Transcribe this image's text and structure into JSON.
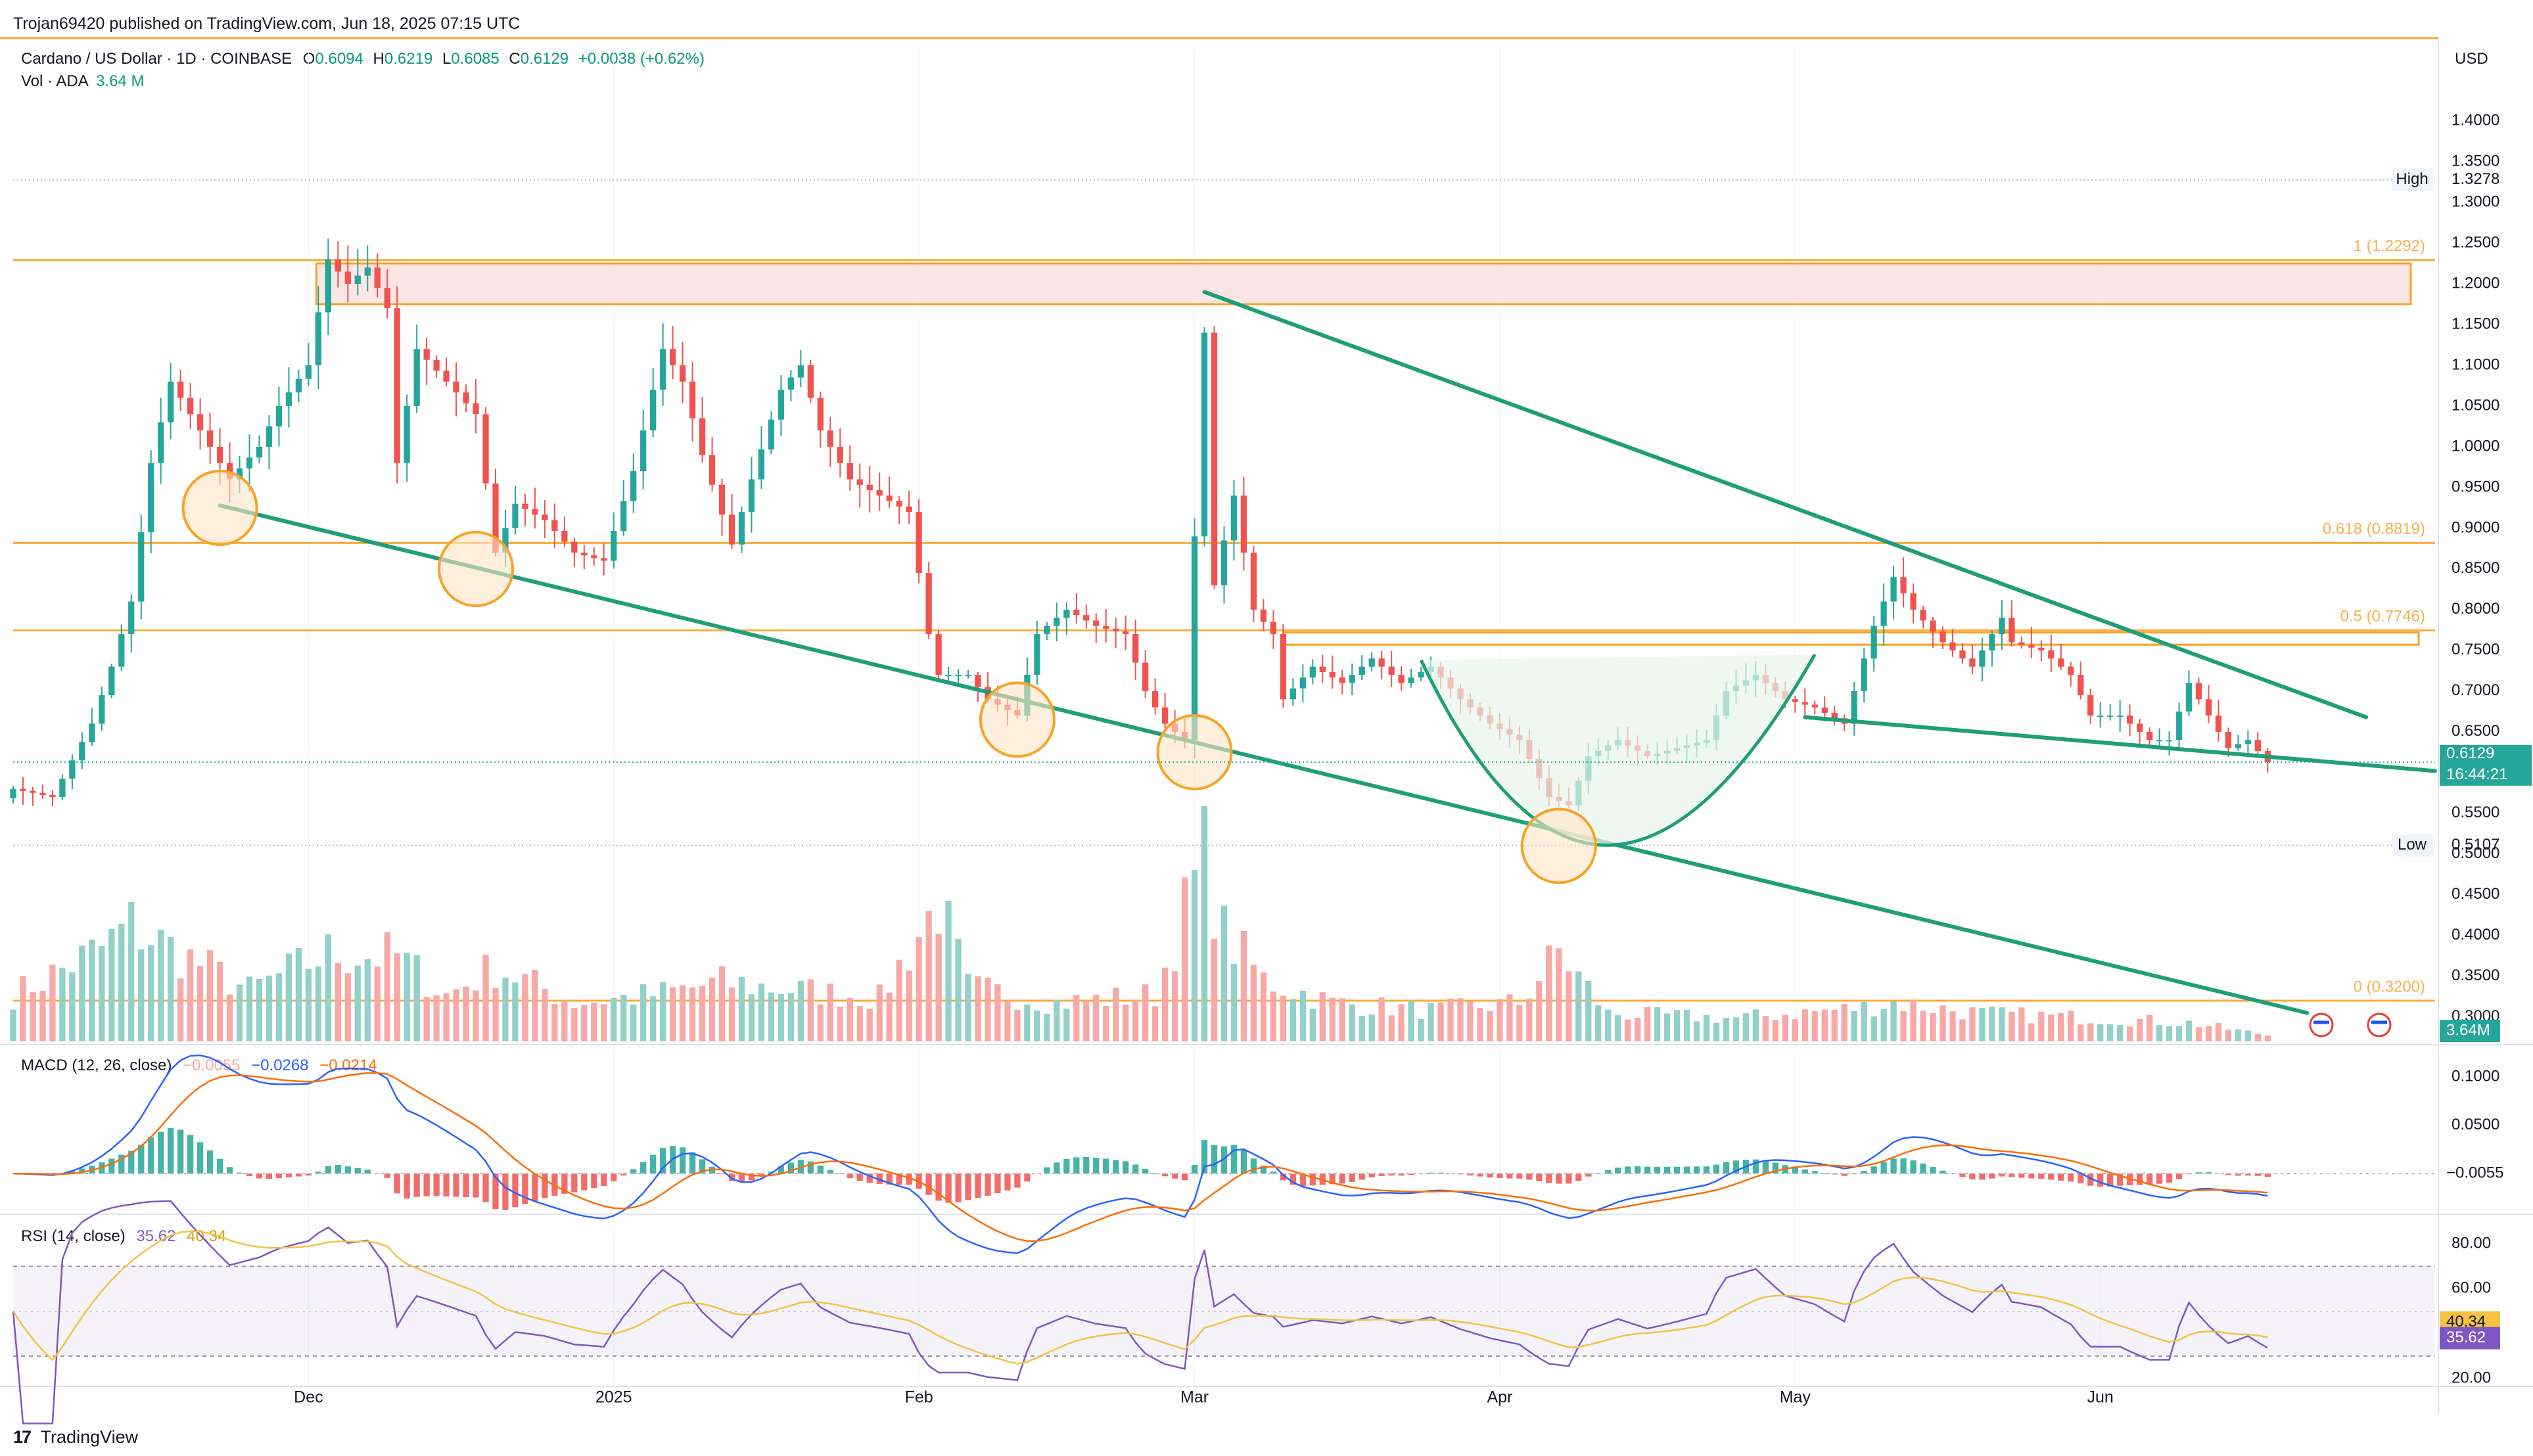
{
  "header": {
    "published": "Trojan69420 published on TradingView.com, Jun 18, 2025 07:15 UTC",
    "symbol": "Cardano / US Dollar · 1D · COINBASE",
    "o_label": "O",
    "o": "0.6094",
    "h_label": "H",
    "h": "0.6219",
    "l_label": "L",
    "l": "0.6085",
    "c_label": "C",
    "c": "0.6129",
    "change": "+0.0038 (+0.62%)",
    "vol_label": "Vol · ADA",
    "vol": "3.64 M"
  },
  "currency": "USD",
  "footer": {
    "logo_text": "TradingView"
  },
  "colors": {
    "up": "#26a69a",
    "down": "#ef5350",
    "up_vol": "#92d0c9",
    "down_vol": "#f7a9a7",
    "trend": "#1f9e78",
    "fib": "#f7a326",
    "zone": "#fbdcdc",
    "macd": "#2962ff",
    "signal": "#ff6d00",
    "rsi": "#7e57c2",
    "rsi_ma": "#f5c242"
  },
  "chart_data": [
    {
      "type": "candlestick",
      "ylim": [
        0.27,
        1.45
      ],
      "y_ticks": [
        "0.3000",
        "0.3500",
        "0.4000",
        "0.4500",
        "0.5000",
        "0.5500",
        "0.6000",
        "0.6500",
        "0.7000",
        "0.7500",
        "0.8000",
        "0.8500",
        "0.9000",
        "0.9500",
        "1.0000",
        "1.0500",
        "1.1000",
        "1.1500",
        "1.2000",
        "1.2500",
        "1.3000",
        "1.3500",
        "1.4000"
      ],
      "x_labels": [
        "Dec",
        "2025",
        "Feb",
        "Mar",
        "Apr",
        "May",
        "Jun"
      ],
      "x_label_dates": [
        "2024-12-01",
        "2025-01-01",
        "2025-02-01",
        "2025-03-01",
        "2025-04-01",
        "2025-05-01",
        "2025-06-01"
      ],
      "x_range": [
        "2024-11-01",
        "2025-07-05"
      ],
      "price_markers": [
        {
          "label": "High",
          "value": "1.3278"
        },
        {
          "label": "Low",
          "value": "0.5107"
        }
      ],
      "last_price": {
        "value": "0.6129",
        "countdown": "16:44:21"
      },
      "fib_levels": [
        {
          "label": "1 (1.2292)",
          "value": 1.2292
        },
        {
          "label": "0.618 (0.8819)",
          "value": 0.8819
        },
        {
          "label": "0.5 (0.7746)",
          "value": 0.7746
        },
        {
          "label": "0 (0.3200)",
          "value": 0.32
        }
      ],
      "anchor_price": [
        {
          "date": "2024-11-01",
          "price": 0.58
        },
        {
          "date": "2024-11-05",
          "price": 0.57
        },
        {
          "date": "2024-11-09",
          "price": 0.66
        },
        {
          "date": "2024-11-11",
          "price": 0.73
        },
        {
          "date": "2024-11-13",
          "price": 0.81
        },
        {
          "date": "2024-11-15",
          "price": 0.98
        },
        {
          "date": "2024-11-17",
          "price": 1.08
        },
        {
          "date": "2024-11-20",
          "price": 1.02
        },
        {
          "date": "2024-11-23",
          "price": 0.96
        },
        {
          "date": "2024-11-26",
          "price": 1.0
        },
        {
          "date": "2024-11-28",
          "price": 1.05
        },
        {
          "date": "2024-12-01",
          "price": 1.1
        },
        {
          "date": "2024-12-03",
          "price": 1.23
        },
        {
          "date": "2024-12-05",
          "price": 1.2
        },
        {
          "date": "2024-12-07",
          "price": 1.22
        },
        {
          "date": "2024-12-09",
          "price": 1.17
        },
        {
          "date": "2024-12-10",
          "price": 0.98
        },
        {
          "date": "2024-12-12",
          "price": 1.12
        },
        {
          "date": "2024-12-15",
          "price": 1.08
        },
        {
          "date": "2024-12-18",
          "price": 1.04
        },
        {
          "date": "2024-12-20",
          "price": 0.87
        },
        {
          "date": "2024-12-22",
          "price": 0.93
        },
        {
          "date": "2024-12-25",
          "price": 0.91
        },
        {
          "date": "2024-12-28",
          "price": 0.87
        },
        {
          "date": "2024-12-31",
          "price": 0.86
        },
        {
          "date": "2025-01-03",
          "price": 0.97
        },
        {
          "date": "2025-01-06",
          "price": 1.12
        },
        {
          "date": "2025-01-08",
          "price": 1.08
        },
        {
          "date": "2025-01-10",
          "price": 0.99
        },
        {
          "date": "2025-01-13",
          "price": 0.88
        },
        {
          "date": "2025-01-15",
          "price": 0.96
        },
        {
          "date": "2025-01-18",
          "price": 1.07
        },
        {
          "date": "2025-01-20",
          "price": 1.1
        },
        {
          "date": "2025-01-22",
          "price": 1.02
        },
        {
          "date": "2025-01-25",
          "price": 0.96
        },
        {
          "date": "2025-01-28",
          "price": 0.94
        },
        {
          "date": "2025-01-31",
          "price": 0.92
        },
        {
          "date": "2025-02-02",
          "price": 0.77
        },
        {
          "date": "2025-02-03",
          "price": 0.72
        },
        {
          "date": "2025-02-06",
          "price": 0.72
        },
        {
          "date": "2025-02-08",
          "price": 0.69
        },
        {
          "date": "2025-02-11",
          "price": 0.67
        },
        {
          "date": "2025-02-13",
          "price": 0.77
        },
        {
          "date": "2025-02-16",
          "price": 0.8
        },
        {
          "date": "2025-02-19",
          "price": 0.78
        },
        {
          "date": "2025-02-22",
          "price": 0.77
        },
        {
          "date": "2025-02-24",
          "price": 0.7
        },
        {
          "date": "2025-02-26",
          "price": 0.66
        },
        {
          "date": "2025-02-28",
          "price": 0.64
        },
        {
          "date": "2025-03-02",
          "price": 1.14
        },
        {
          "date": "2025-03-03",
          "price": 0.83
        },
        {
          "date": "2025-03-05",
          "price": 0.94
        },
        {
          "date": "2025-03-07",
          "price": 0.8
        },
        {
          "date": "2025-03-09",
          "price": 0.77
        },
        {
          "date": "2025-03-10",
          "price": 0.69
        },
        {
          "date": "2025-03-13",
          "price": 0.73
        },
        {
          "date": "2025-03-16",
          "price": 0.71
        },
        {
          "date": "2025-03-19",
          "price": 0.74
        },
        {
          "date": "2025-03-22",
          "price": 0.71
        },
        {
          "date": "2025-03-25",
          "price": 0.73
        },
        {
          "date": "2025-03-28",
          "price": 0.69
        },
        {
          "date": "2025-03-31",
          "price": 0.66
        },
        {
          "date": "2025-04-03",
          "price": 0.64
        },
        {
          "date": "2025-04-06",
          "price": 0.57
        },
        {
          "date": "2025-04-08",
          "price": 0.56
        },
        {
          "date": "2025-04-10",
          "price": 0.62
        },
        {
          "date": "2025-04-13",
          "price": 0.64
        },
        {
          "date": "2025-04-16",
          "price": 0.62
        },
        {
          "date": "2025-04-19",
          "price": 0.63
        },
        {
          "date": "2025-04-22",
          "price": 0.64
        },
        {
          "date": "2025-04-24",
          "price": 0.7
        },
        {
          "date": "2025-04-27",
          "price": 0.72
        },
        {
          "date": "2025-04-30",
          "price": 0.69
        },
        {
          "date": "2025-05-03",
          "price": 0.68
        },
        {
          "date": "2025-05-06",
          "price": 0.66
        },
        {
          "date": "2025-05-09",
          "price": 0.78
        },
        {
          "date": "2025-05-11",
          "price": 0.84
        },
        {
          "date": "2025-05-13",
          "price": 0.8
        },
        {
          "date": "2025-05-16",
          "price": 0.76
        },
        {
          "date": "2025-05-19",
          "price": 0.73
        },
        {
          "date": "2025-05-22",
          "price": 0.79
        },
        {
          "date": "2025-05-23",
          "price": 0.76
        },
        {
          "date": "2025-05-26",
          "price": 0.75
        },
        {
          "date": "2025-05-29",
          "price": 0.72
        },
        {
          "date": "2025-05-31",
          "price": 0.67
        },
        {
          "date": "2025-06-03",
          "price": 0.67
        },
        {
          "date": "2025-06-06",
          "price": 0.64
        },
        {
          "date": "2025-06-08",
          "price": 0.64
        },
        {
          "date": "2025-06-10",
          "price": 0.71
        },
        {
          "date": "2025-06-12",
          "price": 0.67
        },
        {
          "date": "2025-06-14",
          "price": 0.63
        },
        {
          "date": "2025-06-16",
          "price": 0.64
        },
        {
          "date": "2025-06-18",
          "price": 0.6129
        }
      ],
      "anchor_volume_M": [
        {
          "date": "2024-11-01",
          "vol": 30
        },
        {
          "date": "2024-11-10",
          "vol": 60
        },
        {
          "date": "2024-11-13",
          "vol": 75
        },
        {
          "date": "2024-11-17",
          "vol": 60
        },
        {
          "date": "2024-11-25",
          "vol": 33
        },
        {
          "date": "2024-12-03",
          "vol": 57
        },
        {
          "date": "2024-12-10",
          "vol": 55
        },
        {
          "date": "2024-12-15",
          "vol": 30
        },
        {
          "date": "2024-12-20",
          "vol": 48
        },
        {
          "date": "2024-12-28",
          "vol": 25
        },
        {
          "date": "2025-01-05",
          "vol": 30
        },
        {
          "date": "2025-01-12",
          "vol": 38
        },
        {
          "date": "2025-01-20",
          "vol": 33
        },
        {
          "date": "2025-01-28",
          "vol": 28
        },
        {
          "date": "2025-02-03",
          "vol": 90
        },
        {
          "date": "2025-02-06",
          "vol": 35
        },
        {
          "date": "2025-02-15",
          "vol": 25
        },
        {
          "date": "2025-02-25",
          "vol": 30
        },
        {
          "date": "2025-03-02",
          "vol": 120
        },
        {
          "date": "2025-03-04",
          "vol": 70
        },
        {
          "date": "2025-03-08",
          "vol": 40
        },
        {
          "date": "2025-03-15",
          "vol": 25
        },
        {
          "date": "2025-03-25",
          "vol": 20
        },
        {
          "date": "2025-04-03",
          "vol": 25
        },
        {
          "date": "2025-04-07",
          "vol": 58
        },
        {
          "date": "2025-04-12",
          "vol": 18
        },
        {
          "date": "2025-04-25",
          "vol": 15
        },
        {
          "date": "2025-05-08",
          "vol": 22
        },
        {
          "date": "2025-05-11",
          "vol": 25
        },
        {
          "date": "2025-05-20",
          "vol": 18
        },
        {
          "date": "2025-06-01",
          "vol": 15
        },
        {
          "date": "2025-06-10",
          "vol": 12
        },
        {
          "date": "2025-06-18",
          "vol": 4
        }
      ],
      "volume_ylim": [
        0,
        125
      ],
      "volume_badge": "3.64M"
    },
    {
      "type": "line",
      "title": "MACD (12, 26, close)",
      "values": [
        "−0.0055",
        "−0.0268",
        "−0.0214"
      ],
      "series": [
        {
          "name": "MACD",
          "color": "#2962ff"
        },
        {
          "name": "Signal",
          "color": "#ff6d00"
        },
        {
          "name": "Histogram",
          "color": "#26a69a"
        }
      ],
      "ylim": [
        -0.04,
        0.13
      ],
      "y_ticks": [
        "0.1000",
        "0.0500"
      ],
      "last_value_badge": "−0.0055"
    },
    {
      "type": "line",
      "title": "RSI (14, close)",
      "values": [
        "35.62",
        "40.34"
      ],
      "ylim": [
        18,
        92
      ],
      "y_ticks": [
        "80.00",
        "60.00",
        "20.00"
      ],
      "bands": [
        30,
        70
      ],
      "badges": [
        "40.34",
        "35.62"
      ],
      "series": [
        {
          "name": "RSI",
          "color": "#7e57c2"
        },
        {
          "name": "RSI-based MA",
          "color": "#f5c242"
        }
      ]
    }
  ]
}
